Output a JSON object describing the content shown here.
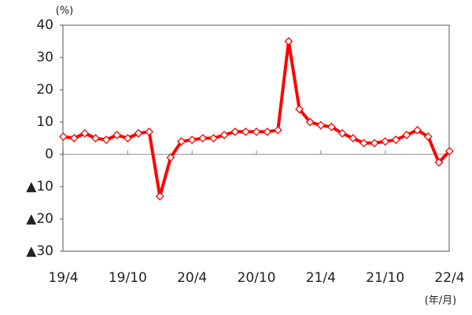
{
  "chart_data": {
    "type": "line",
    "y_unit": "(%)",
    "x_unit": "(年/月)",
    "categories": [
      "19/4",
      null,
      null,
      null,
      null,
      null,
      "19/10",
      null,
      null,
      null,
      null,
      null,
      "20/4",
      null,
      null,
      null,
      null,
      null,
      "20/10",
      null,
      null,
      null,
      null,
      null,
      "21/4",
      null,
      null,
      null,
      null,
      null,
      "21/10",
      null,
      null,
      null,
      null,
      null,
      "22/4"
    ],
    "values": [
      5.5,
      5,
      6.5,
      5,
      4.5,
      6,
      5,
      6.5,
      7,
      -13,
      -1,
      4,
      4.5,
      5,
      5,
      6,
      7,
      7,
      7,
      7,
      7.5,
      35,
      14,
      10,
      9,
      8.5,
      6.5,
      5,
      3.5,
      3.5,
      4,
      4.5,
      6,
      7.5,
      5.5,
      -2.5,
      1
    ],
    "color": "#ff0000",
    "ylim": [
      -30,
      40
    ],
    "yticks": [
      {
        "value": -30,
        "label": "▲30"
      },
      {
        "value": -20,
        "label": "▲20"
      },
      {
        "value": -10,
        "label": "▲10"
      },
      0,
      10,
      20,
      30,
      40
    ]
  }
}
